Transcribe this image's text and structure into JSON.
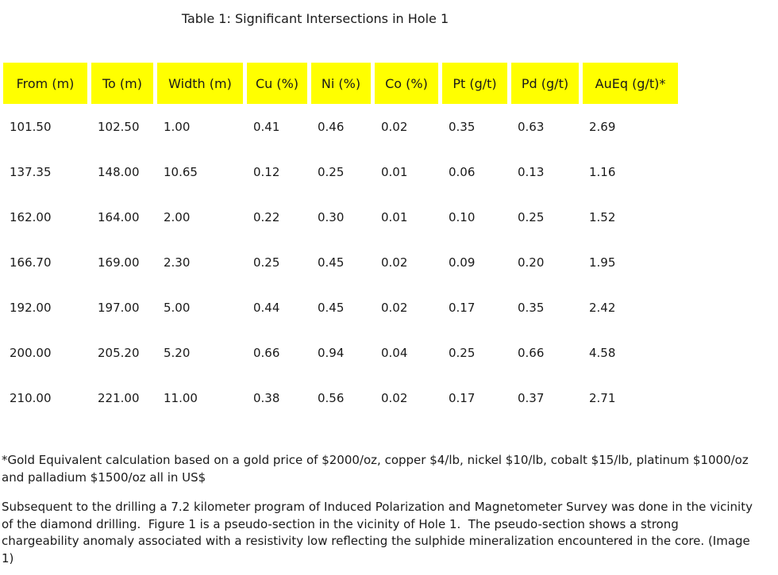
{
  "colors": {
    "page_background": "#ffffff",
    "table_header_background": "#ffff00",
    "text": "#1a1a1a"
  },
  "title": "Table 1: Significant Intersections in Hole 1",
  "table": {
    "columns": [
      "From (m)",
      "To (m)",
      "Width (m)",
      "Cu (%)",
      "Ni (%)",
      "Co (%)",
      "Pt (g/t)",
      "Pd (g/t)",
      "AuEq (g/t)*"
    ],
    "rows": [
      [
        "101.50",
        "102.50",
        "1.00",
        "0.41",
        "0.46",
        "0.02",
        "0.35",
        "0.63",
        "2.69"
      ],
      [
        "137.35",
        "148.00",
        "10.65",
        "0.12",
        "0.25",
        "0.01",
        "0.06",
        "0.13",
        "1.16"
      ],
      [
        "162.00",
        "164.00",
        "2.00",
        "0.22",
        "0.30",
        "0.01",
        "0.10",
        "0.25",
        "1.52"
      ],
      [
        "166.70",
        "169.00",
        "2.30",
        "0.25",
        "0.45",
        "0.02",
        "0.09",
        "0.20",
        "1.95"
      ],
      [
        "192.00",
        "197.00",
        "5.00",
        "0.44",
        "0.45",
        "0.02",
        "0.17",
        "0.35",
        "2.42"
      ],
      [
        "200.00",
        "205.20",
        "5.20",
        "0.66",
        "0.94",
        "0.04",
        "0.25",
        "0.66",
        "4.58"
      ],
      [
        "210.00",
        "221.00",
        "11.00",
        "0.38",
        "0.56",
        "0.02",
        "0.17",
        "0.37",
        "2.71"
      ]
    ]
  },
  "footnote": "*Gold Equivalent calculation based on a gold price of $2000/oz, copper $4/lb, nickel $10/lb, cobalt $15/lb, platinum $1000/oz and palladium $1500/oz all in US$",
  "paragraph": "Subsequent to the drilling a 7.2 kilometer program of Induced Polarization and Magnetometer Survey was done in the vicinity of the diamond drilling.  Figure 1 is a pseudo-section in the vicinity of Hole 1.  The pseudo-section shows a strong chargeability anomaly associated with a resistivity low reflecting the sulphide mineralization encountered in the core. (Image 1)"
}
